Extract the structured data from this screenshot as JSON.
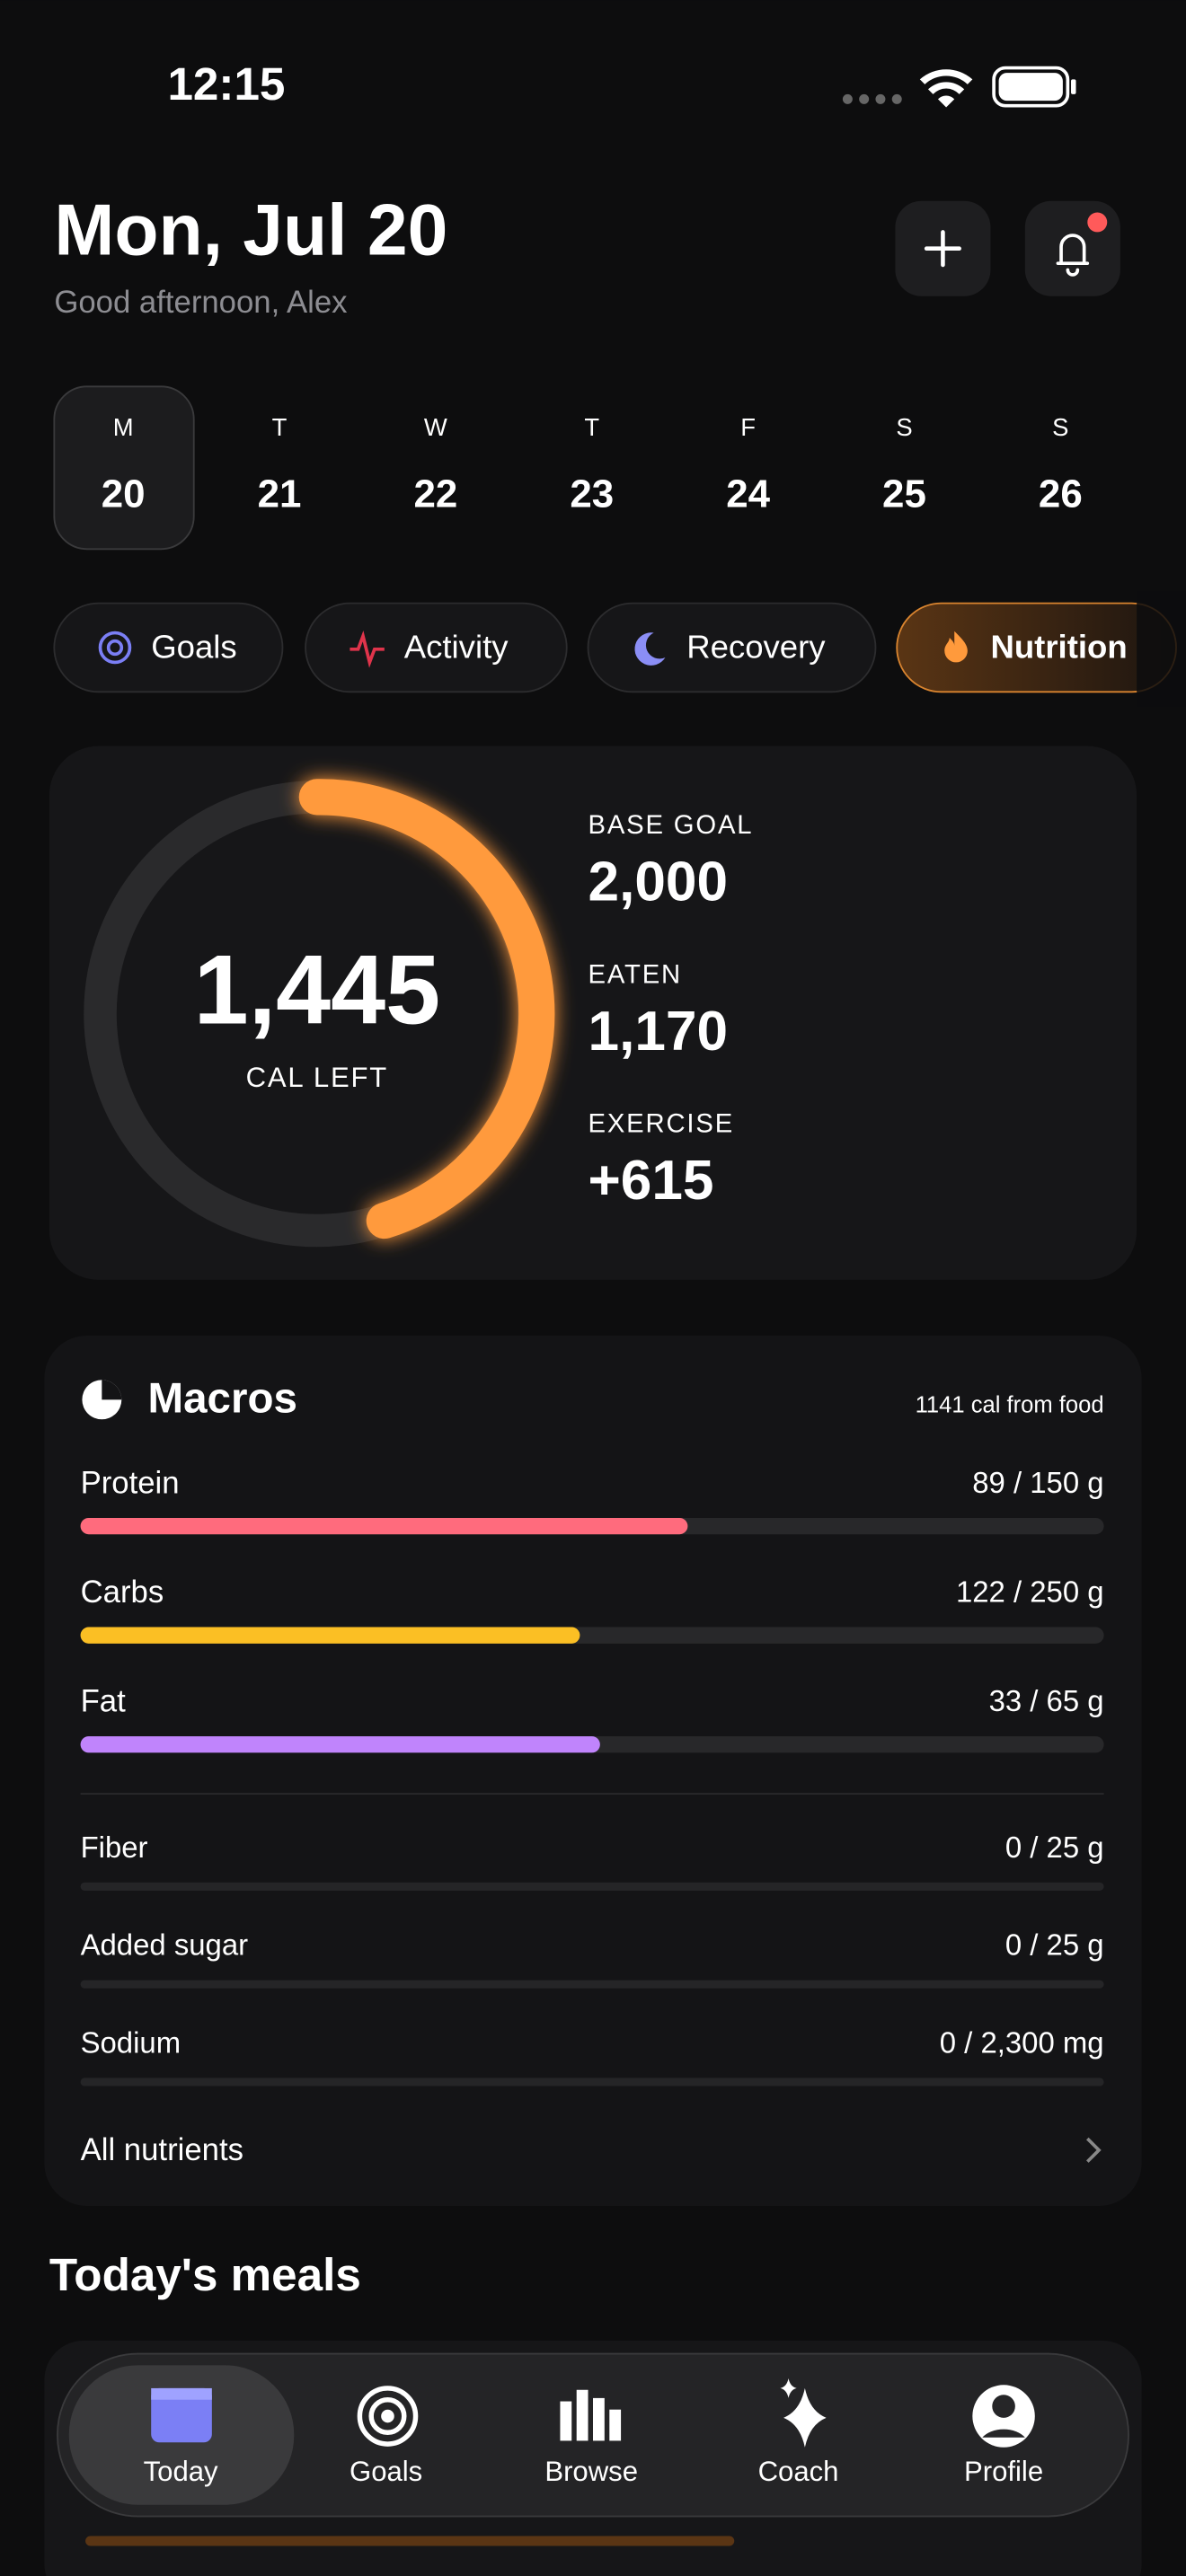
{
  "status": {
    "time": "12:15"
  },
  "header": {
    "date": "Mon, Jul 20",
    "greeting": "Good afternoon, Alex"
  },
  "week": [
    {
      "day": "M",
      "date": "20"
    },
    {
      "day": "T",
      "date": "21"
    },
    {
      "day": "W",
      "date": "22"
    },
    {
      "day": "T",
      "date": "23"
    },
    {
      "day": "F",
      "date": "24"
    },
    {
      "day": "S",
      "date": "25"
    },
    {
      "day": "S",
      "date": "26"
    }
  ],
  "tabs": [
    "Goals",
    "Activity",
    "Recovery",
    "Nutrition"
  ],
  "calories": {
    "remaining": "1,445",
    "remaining_label": "CAL LEFT",
    "stats": [
      {
        "label": "BASE GOAL",
        "value": "2,000"
      },
      {
        "label": "EATEN",
        "value": "1,170"
      },
      {
        "label": "EXERCISE",
        "value": "+615"
      }
    ]
  },
  "macros": {
    "title": "Macros",
    "subtitle": "1141 cal from food",
    "rows": [
      {
        "name": "Protein",
        "amount": "89 / 150 g",
        "value": 89,
        "max": 150,
        "color": "#ff6b7d"
      },
      {
        "name": "Carbs",
        "amount": "122 / 250 g",
        "value": 122,
        "max": 250,
        "color": "#fbbf24"
      },
      {
        "name": "Fat",
        "amount": "33 / 65 g",
        "value": 33,
        "max": 65,
        "color": "#c084fc"
      }
    ],
    "minor": [
      {
        "name": "Fiber",
        "amount": "0 / 25 g",
        "value": 0,
        "max": 25
      },
      {
        "name": "Added sugar",
        "amount": "0 / 25 g",
        "value": 0,
        "max": 25
      },
      {
        "name": "Sodium",
        "amount": "0 / 2,300 mg",
        "value": 0,
        "max": 2300
      }
    ],
    "link": "All nutrients"
  },
  "meals": {
    "title": "Today's meals"
  },
  "nav": [
    "Today",
    "Goals",
    "Browse",
    "Coach",
    "Profile"
  ]
}
